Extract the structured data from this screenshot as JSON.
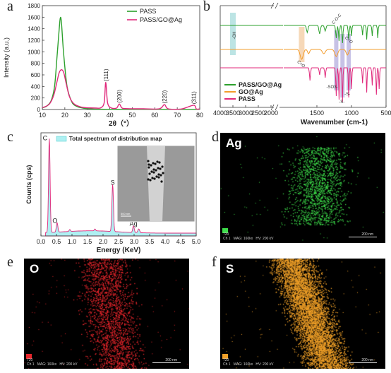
{
  "panel_letters": {
    "a": "a",
    "b": "b",
    "c": "c",
    "d": "d",
    "e": "e",
    "f": "f"
  },
  "chart_data": [
    {
      "type": "line",
      "panel": "a",
      "xlabel": "2θ（°）",
      "ylabel": "Intensity (a.u.)",
      "xlim": [
        10,
        80
      ],
      "ylim": [
        0,
        1800
      ],
      "xticks": [
        "10",
        "20",
        "30",
        "40",
        "50",
        "60",
        "70",
        "80"
      ],
      "yticks": [
        "0",
        "200",
        "400",
        "600",
        "800",
        "1000",
        "1200",
        "1400",
        "1600",
        "1800"
      ],
      "series": [
        {
          "name": "PASS",
          "color": "#2ca02c",
          "x": [
            10,
            12,
            14,
            15.5,
            16.5,
            17.5,
            18,
            18.5,
            19.5,
            21,
            23,
            25,
            28,
            32,
            36,
            40,
            45,
            50,
            55,
            60,
            65,
            70,
            75,
            80
          ],
          "y": [
            30,
            60,
            160,
            420,
            900,
            1400,
            1590,
            1500,
            950,
            400,
            140,
            60,
            25,
            10,
            5,
            3,
            3,
            2,
            2,
            2,
            2,
            2,
            2,
            2
          ]
        },
        {
          "name": "PASS/GO@Ag",
          "color": "#e0287b",
          "x": [
            10,
            13,
            15,
            16.5,
            17.5,
            18.5,
            19.5,
            20.5,
            22,
            24,
            27,
            30,
            34,
            36,
            37.5,
            38.2,
            39,
            40.5,
            43,
            44.2,
            45.5,
            48,
            55,
            62,
            64.3,
            66,
            72,
            77.3,
            78.5,
            80
          ],
          "y": [
            30,
            90,
            240,
            480,
            640,
            690,
            640,
            470,
            230,
            100,
            45,
            30,
            25,
            30,
            120,
            470,
            120,
            30,
            25,
            95,
            25,
            15,
            12,
            12,
            85,
            12,
            10,
            75,
            10,
            10
          ]
        }
      ],
      "annotations": [
        {
          "label": "(111)",
          "x": 38.2
        },
        {
          "label": "(200)",
          "x": 44.2
        },
        {
          "label": "(220)",
          "x": 64.3
        },
        {
          "label": "(311)",
          "x": 77.3
        }
      ]
    },
    {
      "type": "line",
      "panel": "b",
      "xlabel": "Wavenumber (cm-1)",
      "xticks": [
        "4000",
        "3500",
        "3000",
        "2500",
        "2000",
        "1500",
        "1000",
        "500"
      ],
      "series": [
        {
          "name": "PASS/GO@Ag",
          "color": "#2ca02c"
        },
        {
          "name": "GO@Ag",
          "color": "#f39c2b"
        },
        {
          "name": "PASS",
          "color": "#e0287b"
        }
      ],
      "annotations": [
        "-OH",
        "C-O-C",
        "C=O",
        "C=O",
        "-SO3-",
        "-S-",
        "-S-"
      ]
    },
    {
      "type": "line",
      "panel": "c",
      "xlabel": "Energy (KeV)",
      "ylabel": "Counts (cps)",
      "xlim": [
        0,
        5.0
      ],
      "xticks": [
        "0.0",
        "0.5",
        "1.0",
        "1.5",
        "2.0",
        "2.5",
        "3.0",
        "3.5",
        "4.0",
        "4.5",
        "5.0"
      ],
      "legend": "Total spectrum of distribution map",
      "peaks": [
        {
          "label": "C",
          "x": 0.27,
          "y": 100
        },
        {
          "label": "O",
          "x": 0.52,
          "y": 10
        },
        {
          "label": "S",
          "x": 2.31,
          "y": 50
        },
        {
          "label": "Ag",
          "x": 2.98,
          "y": 7
        }
      ],
      "inset_scale": "500 nm"
    }
  ],
  "maps": [
    {
      "panel": "d",
      "element": "Ag",
      "color": "#3ddc4a",
      "chip": "#3ddc4a",
      "footer": "720\nCh 1   MAG: 160kx   HV: 200 kV",
      "scale": "200 nm"
    },
    {
      "panel": "e",
      "element": "O",
      "color": "#e8262c",
      "chip": "#e8262c",
      "footer": "720\nCh 1   MAG: 160kx   HV: 200 kV",
      "scale": "200 nm"
    },
    {
      "panel": "f",
      "element": "S",
      "color": "#f0a028",
      "chip": "#f0a028",
      "footer": "720\nCh 1   MAG: 160kx   HV: 200 kV",
      "scale": "200 nm"
    }
  ]
}
